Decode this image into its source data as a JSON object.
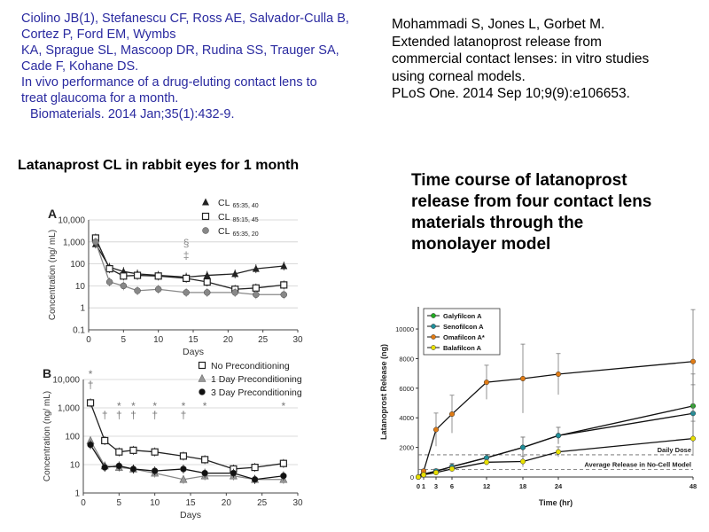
{
  "citation_left": {
    "lines": [
      "Ciolino JB(1), Stefanescu CF, Ross AE, Salvador-Culla B,",
      "Cortez P, Ford EM, Wymbs",
      "KA, Sprague SL, Mascoop DR, Rudina SS, Trauger SA,",
      "Cade F, Kohane DS.",
      "In vivo performance of a drug-eluting contact lens to",
      "treat glaucoma for a month.",
      "Biomaterials. 2014 Jan;35(1):432-9."
    ]
  },
  "citation_right": {
    "lines": [
      "Mohammadi S, Jones L, Gorbet M.",
      "Extended latanoprost release from",
      "commercial contact lenses: in vitro studies",
      "using corneal models.",
      "PLoS One. 2014 Sep 10;9(9):e106653."
    ]
  },
  "caption_left": "Latanaprost CL in rabbit eyes for 1 month",
  "caption_right": {
    "lines": [
      "Time course of latanoprost",
      "release from four contact lens",
      "materials through the",
      "monolayer model"
    ]
  },
  "chart_data": [
    {
      "type": "line",
      "panel_label": "A",
      "xlabel": "Days",
      "ylabel": "Concentration (ng/ mL)",
      "yscale": "log",
      "xlim": [
        0,
        30
      ],
      "ylim": [
        0.1,
        10000
      ],
      "x_ticks": [
        "0",
        "5",
        "10",
        "15",
        "20",
        "25",
        "30"
      ],
      "y_ticks": [
        "0.1",
        "1",
        "10",
        "100",
        "1,000",
        "10,000"
      ],
      "legend_position": "top-right",
      "series": [
        {
          "name": "CL",
          "subscript": "65:35, 40",
          "marker": "triangle-filled",
          "color": "#222222",
          "x": [
            1,
            3,
            5,
            7,
            10,
            14,
            17,
            21,
            24,
            28
          ],
          "y": [
            800,
            70,
            45,
            35,
            30,
            25,
            30,
            35,
            60,
            80
          ]
        },
        {
          "name": "CL",
          "subscript": "85:15, 45",
          "marker": "square-open",
          "color": "#222222",
          "x": [
            1,
            3,
            5,
            7,
            10,
            14,
            17,
            21,
            24,
            28
          ],
          "y": [
            1500,
            60,
            28,
            30,
            28,
            22,
            15,
            7,
            8,
            11
          ]
        },
        {
          "name": "CL",
          "subscript": "65:35, 20",
          "marker": "circle-filled",
          "color": "#888888",
          "x": [
            1,
            3,
            5,
            7,
            10,
            14,
            17,
            21,
            24,
            28
          ],
          "y": [
            1000,
            15,
            10,
            6,
            7,
            5,
            5,
            5,
            4,
            4
          ]
        }
      ],
      "annotations": [
        {
          "x": 14,
          "text": "§"
        },
        {
          "x": 14,
          "text": "‡"
        }
      ]
    },
    {
      "type": "line",
      "panel_label": "B",
      "xlabel": "Days",
      "ylabel": "Concentration (ng/ mL)",
      "yscale": "log",
      "xlim": [
        0,
        30
      ],
      "ylim": [
        1,
        10000
      ],
      "x_ticks": [
        "0",
        "5",
        "10",
        "15",
        "20",
        "25",
        "30"
      ],
      "y_ticks": [
        "1",
        "10",
        "100",
        "1,000",
        "10,000"
      ],
      "legend_position": "top-right",
      "series": [
        {
          "name": "No Preconditioning",
          "marker": "square-open",
          "color": "#222222",
          "x": [
            1,
            3,
            5,
            7,
            10,
            14,
            17,
            21,
            24,
            28
          ],
          "y": [
            1500,
            70,
            28,
            32,
            28,
            20,
            15,
            7,
            8,
            11
          ]
        },
        {
          "name": "1 Day Preconditioning",
          "marker": "triangle-gray",
          "color": "#888888",
          "x": [
            1,
            3,
            5,
            7,
            10,
            14,
            17,
            21,
            24,
            28
          ],
          "y": [
            70,
            9,
            8,
            7,
            5,
            3,
            4,
            4,
            3,
            3
          ]
        },
        {
          "name": "3 Day Preconditioning",
          "marker": "circle-filled",
          "color": "#111111",
          "x": [
            1,
            3,
            5,
            7,
            10,
            14,
            17,
            21,
            24,
            28
          ],
          "y": [
            50,
            8,
            9,
            7,
            6,
            7,
            5,
            5,
            3,
            4
          ]
        }
      ],
      "annotations": [
        {
          "x": 1,
          "text": "*"
        },
        {
          "x": 1,
          "text": "†"
        },
        {
          "x": 3,
          "text": "†"
        },
        {
          "x": 5,
          "text": "*"
        },
        {
          "x": 5,
          "text": "†"
        },
        {
          "x": 7,
          "text": "*"
        },
        {
          "x": 7,
          "text": "†"
        },
        {
          "x": 10,
          "text": "*"
        },
        {
          "x": 10,
          "text": "†"
        },
        {
          "x": 14,
          "text": "*"
        },
        {
          "x": 14,
          "text": "†"
        },
        {
          "x": 17,
          "text": "*"
        },
        {
          "x": 28,
          "text": "*"
        }
      ]
    },
    {
      "type": "line",
      "xlabel": "Time (hr)",
      "ylabel": "Latanoprost Release (ng)",
      "xlim": [
        0,
        48
      ],
      "ylim": [
        0,
        11500
      ],
      "x_ticks": [
        "0",
        "1",
        "3",
        "6",
        "12",
        "18",
        "24",
        "48"
      ],
      "x_tick_values": [
        0,
        1,
        3,
        6,
        12,
        18,
        24,
        48
      ],
      "x_scale": "categorical-spacing",
      "y_ticks": [
        "0",
        "2000",
        "4000",
        "6000",
        "8000",
        "10000"
      ],
      "legend_position": "top-left",
      "series": [
        {
          "name": "Galyfilcon A",
          "color": "#22aa22",
          "x": [
            0,
            1,
            3,
            6,
            12,
            18,
            24,
            48
          ],
          "y": [
            0,
            200,
            400,
            700,
            1300,
            2000,
            2800,
            4800
          ]
        },
        {
          "name": "Senofilcon A",
          "color": "#1f8f9a",
          "x": [
            0,
            1,
            3,
            6,
            12,
            18,
            24,
            48
          ],
          "y": [
            0,
            200,
            400,
            700,
            1300,
            2000,
            2800,
            4300
          ]
        },
        {
          "name": "Omafilcon A*",
          "color": "#e07b14",
          "x": [
            0,
            1,
            3,
            6,
            12,
            18,
            24,
            48
          ],
          "y": [
            0,
            400,
            3200,
            4250,
            6400,
            6650,
            6950,
            7800
          ]
        },
        {
          "name": "Balafilcon A",
          "color": "#e8e000",
          "x": [
            0,
            1,
            3,
            6,
            12,
            18,
            24,
            48
          ],
          "y": [
            0,
            150,
            300,
            550,
            1000,
            1050,
            1700,
            2600
          ]
        }
      ],
      "reference_lines": [
        {
          "label": "Daily Dose",
          "y": 1500
        },
        {
          "label": "Average Release in No-Cell Model",
          "y": 500
        }
      ]
    }
  ]
}
